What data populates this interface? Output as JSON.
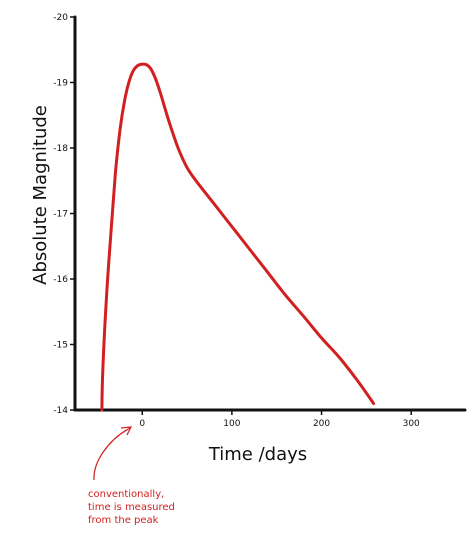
{
  "chart_data": {
    "type": "line",
    "title": "",
    "xlabel": "Time /days",
    "ylabel": "Absolute Magnitude",
    "xlim": [
      -75,
      360
    ],
    "ylim": [
      -14,
      -20
    ],
    "y_inverted": true,
    "grid": false,
    "x_ticks": [
      0,
      100,
      200,
      300
    ],
    "x_tick_labels": [
      "0",
      "100",
      "200",
      "300"
    ],
    "y_ticks": [
      -20,
      -19,
      -18,
      -17,
      -16,
      -15,
      -14
    ],
    "y_tick_labels": [
      "-20",
      "-19",
      "-18",
      "-17",
      "-16",
      "-15",
      "-14"
    ],
    "series": [
      {
        "color": "#d21f1f",
        "x": [
          -45,
          -44,
          -40,
          -35,
          -30,
          -25,
          -20,
          -15,
          -10,
          -5,
          0,
          5,
          10,
          15,
          20,
          30,
          40,
          50,
          60,
          80,
          100,
          120,
          140,
          160,
          180,
          200,
          220,
          240,
          258
        ],
        "y": [
          -14,
          -14.6,
          -15.7,
          -16.7,
          -17.6,
          -18.25,
          -18.7,
          -19.0,
          -19.18,
          -19.26,
          -19.28,
          -19.27,
          -19.2,
          -19.05,
          -18.85,
          -18.4,
          -18.0,
          -17.7,
          -17.5,
          -17.15,
          -16.8,
          -16.45,
          -16.1,
          -15.75,
          -15.43,
          -15.1,
          -14.8,
          -14.45,
          -14.1
        ]
      }
    ],
    "annotations": [
      {
        "text": "conventionally, time is measured from the peak",
        "points_to_x": 0,
        "color": "#d21f1f"
      }
    ]
  },
  "annotation_lines": [
    "conventionally,",
    "time is measured",
    "from the peak"
  ]
}
